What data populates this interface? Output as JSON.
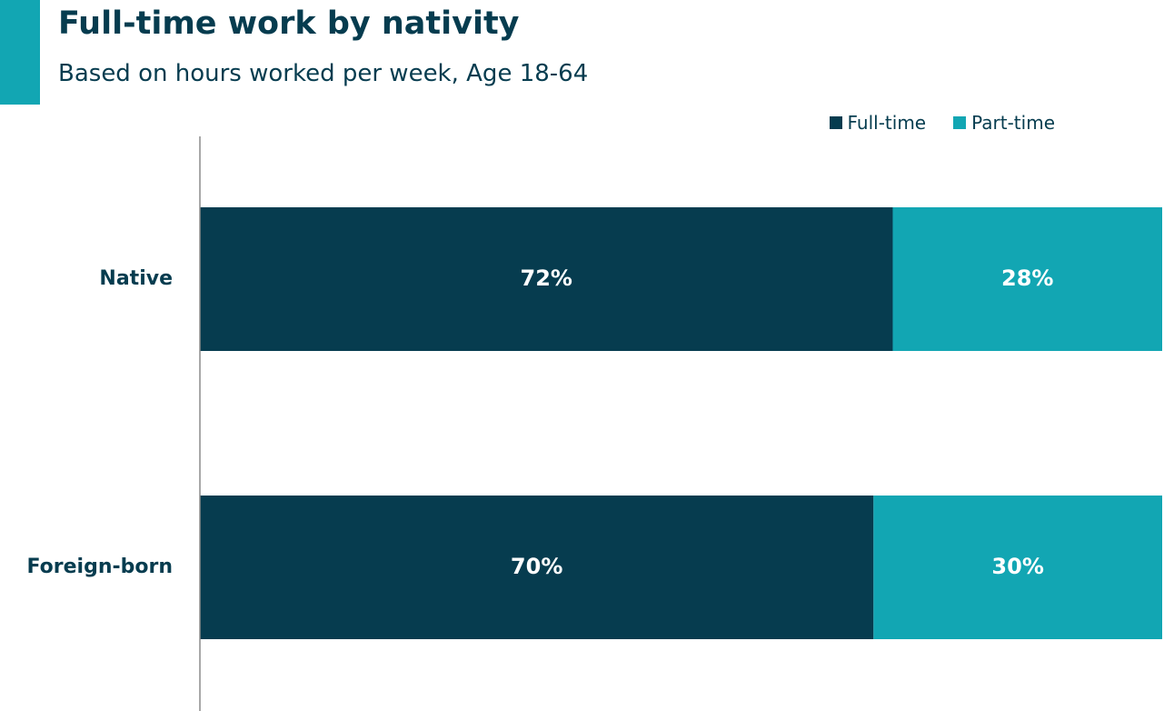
{
  "title": "Full-time work by nativity",
  "subtitle": "Based on hours worked per week, Age 18-64",
  "colors": {
    "accent": "#12a6b3",
    "full_time": "#063c4f",
    "part_time": "#12a6b3",
    "axis": "#8c8c8c"
  },
  "chart_data": {
    "type": "bar",
    "orientation": "horizontal",
    "stacked": true,
    "title": "Full-time work by nativity",
    "subtitle": "Based on hours worked per week, Age 18-64",
    "categories": [
      "Native",
      "Foreign-born"
    ],
    "series": [
      {
        "name": "Full-time",
        "values": [
          72,
          70
        ],
        "labels": [
          "72%",
          "70%"
        ]
      },
      {
        "name": "Part-time",
        "values": [
          28,
          30
        ],
        "labels": [
          "28%",
          "30%"
        ]
      }
    ],
    "xlim": [
      0,
      100
    ],
    "grid": false,
    "legend_position": "top-right"
  }
}
